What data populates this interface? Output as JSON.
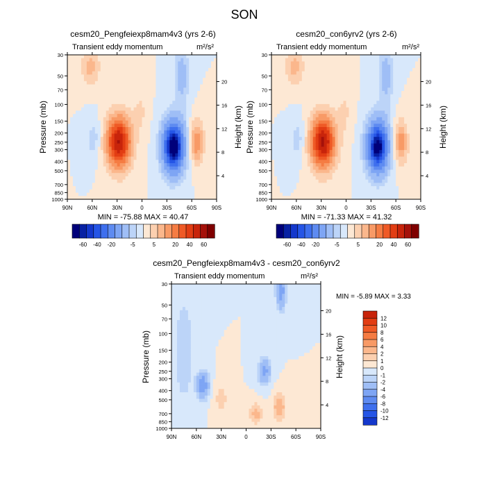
{
  "figure": {
    "title": "SON"
  },
  "colors": {
    "pos_ramp": [
      "#fde8d4",
      "#fcd0b0",
      "#fbb78c",
      "#f89a66",
      "#f57c43",
      "#ef5a26",
      "#e23d13",
      "#c8240b",
      "#a5110a",
      "#7f0000"
    ],
    "neg_ramp": [
      "#d8e8fb",
      "#bcd4f8",
      "#9fbef6",
      "#7ea5f4",
      "#5e8bf1",
      "#3e6fee",
      "#2555e6",
      "#1438cc",
      "#0821a3",
      "#00007a"
    ]
  },
  "chart_data": [
    {
      "type": "heatmap",
      "title": "cesm20_Pengfeiexp8mam4v3 (yrs 2-6)",
      "left_label": "Transient eddy momentum",
      "unit_label": "m²/s²",
      "xlabel": "",
      "ylabel": "Pressure (mb)",
      "ylabel_right": "Height (km)",
      "x_ticks": [
        "90N",
        "60N",
        "30N",
        "0",
        "30S",
        "60S",
        "90S"
      ],
      "y_ticks": [
        "30",
        "50",
        "70",
        "100",
        "150",
        "200",
        "250",
        "300",
        "400",
        "500",
        "700",
        "850",
        "1000"
      ],
      "y_right_ticks": [
        "20",
        "16",
        "12",
        "8",
        "4"
      ],
      "stats": "MIN = -75.88  MAX = 40.47",
      "colorbar_labels": [
        "-60",
        "-40",
        "-20",
        "-5",
        "5",
        "20",
        "40",
        "60"
      ],
      "blobs": [
        {
          "lat": 28,
          "p": 250,
          "amp": 40.47,
          "slat": 11,
          "sz": 0.26
        },
        {
          "lat": -38,
          "p": 280,
          "amp": -75.88,
          "slat": 9,
          "sz": 0.24
        },
        {
          "lat": -66,
          "p": 250,
          "amp": 20,
          "slat": 6,
          "sz": 0.2
        },
        {
          "lat": 58,
          "p": 230,
          "amp": -8,
          "slat": 6,
          "sz": 0.2
        },
        {
          "lat": 62,
          "p": 40,
          "amp": 12,
          "slat": 8,
          "sz": 0.18
        },
        {
          "lat": -48,
          "p": 50,
          "amp": -14,
          "slat": 6,
          "sz": 0.3
        },
        {
          "lat": 2,
          "p": 120,
          "amp": 6,
          "slat": 6,
          "sz": 0.2
        }
      ]
    },
    {
      "type": "heatmap",
      "title": "cesm20_con6yrv2 (yrs 2-6)",
      "left_label": "Transient eddy momentum",
      "unit_label": "m²/s²",
      "xlabel": "",
      "ylabel": "Pressure (mb)",
      "ylabel_right": "Height (km)",
      "x_ticks": [
        "90N",
        "60N",
        "30N",
        "0",
        "30S",
        "60S",
        "90S"
      ],
      "y_ticks": [
        "30",
        "50",
        "70",
        "100",
        "150",
        "200",
        "250",
        "300",
        "400",
        "500",
        "700",
        "850",
        "1000"
      ],
      "y_right_ticks": [
        "20",
        "16",
        "12",
        "8",
        "4"
      ],
      "stats": "MIN = -71.33  MAX = 41.32",
      "colorbar_labels": [
        "-60",
        "-40",
        "-20",
        "-5",
        "5",
        "20",
        "40",
        "60"
      ],
      "blobs": [
        {
          "lat": 28,
          "p": 250,
          "amp": 41.32,
          "slat": 11,
          "sz": 0.26
        },
        {
          "lat": -38,
          "p": 280,
          "amp": -71.33,
          "slat": 9,
          "sz": 0.24
        },
        {
          "lat": -66,
          "p": 250,
          "amp": 19,
          "slat": 6,
          "sz": 0.2
        },
        {
          "lat": 58,
          "p": 230,
          "amp": -8,
          "slat": 6,
          "sz": 0.2
        },
        {
          "lat": 62,
          "p": 40,
          "amp": 12,
          "slat": 8,
          "sz": 0.18
        },
        {
          "lat": -48,
          "p": 50,
          "amp": -14,
          "slat": 6,
          "sz": 0.3
        },
        {
          "lat": 2,
          "p": 120,
          "amp": 6,
          "slat": 6,
          "sz": 0.2
        }
      ]
    },
    {
      "type": "heatmap",
      "title": "cesm20_Pengfeiexp8mam4v3 - cesm20_con6yrv2",
      "left_label": "Transient eddy momentum",
      "unit_label": "m²/s²",
      "xlabel": "",
      "ylabel": "Pressure (mb)",
      "ylabel_right": "Height (km)",
      "x_ticks": [
        "90N",
        "60N",
        "30N",
        "0",
        "30S",
        "60S",
        "90S"
      ],
      "y_ticks": [
        "30",
        "50",
        "70",
        "100",
        "150",
        "200",
        "250",
        "300",
        "400",
        "500",
        "700",
        "850",
        "1000"
      ],
      "y_right_ticks": [
        "20",
        "16",
        "12",
        "8",
        "4"
      ],
      "stats": "MIN =  -5.89  MAX =   3.33",
      "colorbar_labels": [
        "12",
        "10",
        "8",
        "6",
        "4",
        "2",
        "1",
        "0",
        "-1",
        "-2",
        "-4",
        "-6",
        "-8",
        "-10",
        "-12"
      ],
      "blobs": [
        {
          "lat": 52,
          "p": 350,
          "amp": -5.89,
          "slat": 5,
          "sz": 0.12
        },
        {
          "lat": -22,
          "p": 250,
          "amp": -5,
          "slat": 5,
          "sz": 0.12
        },
        {
          "lat": -42,
          "p": 35,
          "amp": -5.5,
          "slat": 4,
          "sz": 0.18
        },
        {
          "lat": -40,
          "p": 600,
          "amp": 3.33,
          "slat": 5,
          "sz": 0.12
        },
        {
          "lat": -12,
          "p": 700,
          "amp": 2.5,
          "slat": 6,
          "sz": 0.1
        },
        {
          "lat": 75,
          "p": 150,
          "amp": -2,
          "slat": 8,
          "sz": 0.5
        },
        {
          "lat": 30,
          "p": 500,
          "amp": 1.5,
          "slat": 6,
          "sz": 0.15
        }
      ]
    }
  ]
}
